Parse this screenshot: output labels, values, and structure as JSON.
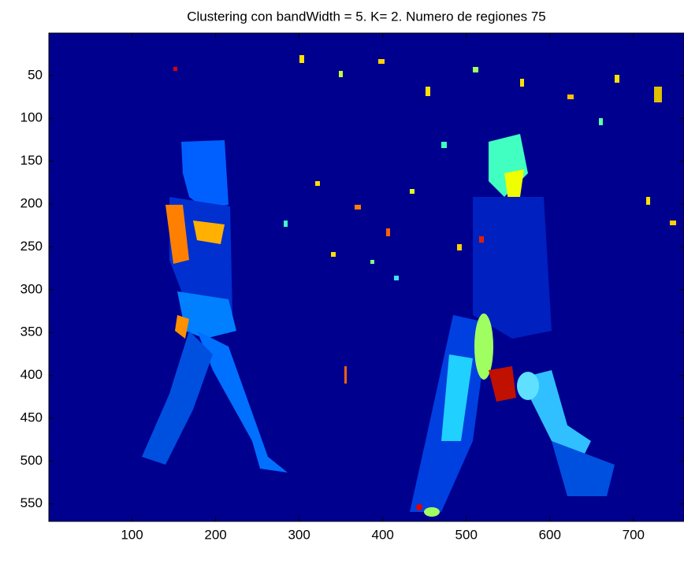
{
  "chart_data": {
    "type": "image",
    "title": "Clustering con bandWidth = 5. K= 2. Numero de regiones 75",
    "xlim": [
      0.5,
      760.5
    ],
    "xticks": [
      100,
      200,
      300,
      400,
      500,
      600,
      700
    ],
    "ylim": [
      0.5,
      570.5
    ],
    "yticks": [
      50,
      100,
      150,
      200,
      250,
      300,
      350,
      400,
      450,
      500,
      550
    ]
  }
}
